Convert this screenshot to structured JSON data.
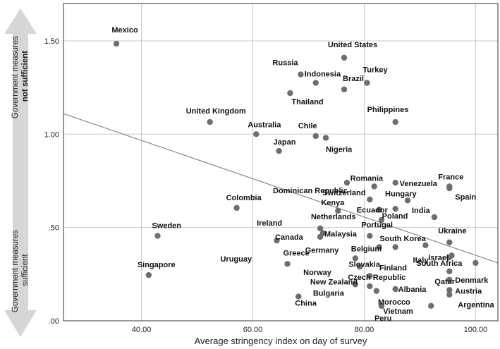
{
  "chart_data": {
    "type": "scatter",
    "xlabel": "Average stringency index on day of survey",
    "ylabel_top": [
      "Government measures",
      "not sufficient"
    ],
    "ylabel_bottom": [
      "Government measures",
      "sufficient"
    ],
    "xlim": [
      26,
      104
    ],
    "ylim": [
      0.0,
      1.7
    ],
    "x_ticks": [
      40,
      60,
      80,
      100
    ],
    "x_tick_labels": [
      "40.00",
      "60.00",
      "80.00",
      "100.00"
    ],
    "y_ticks": [
      0.0,
      0.5,
      1.0,
      1.5
    ],
    "y_tick_labels": [
      ".00",
      ".50",
      "1.00",
      "1.50"
    ],
    "grid": true,
    "fit_line": {
      "x": [
        26,
        104
      ],
      "y": [
        1.11,
        0.31
      ]
    },
    "points": [
      {
        "label": "Mexico",
        "x": 35.5,
        "y": 1.485
      },
      {
        "label": "United States",
        "x": 76.4,
        "y": 1.41
      },
      {
        "label": "Russia",
        "x": 68.6,
        "y": 1.32
      },
      {
        "label": "Indonesia",
        "x": 71.3,
        "y": 1.275
      },
      {
        "label": "Turkey",
        "x": 80.5,
        "y": 1.275
      },
      {
        "label": "Brazil",
        "x": 76.4,
        "y": 1.24
      },
      {
        "label": "Thailand",
        "x": 66.7,
        "y": 1.22
      },
      {
        "label": "Philippines",
        "x": 85.6,
        "y": 1.065
      },
      {
        "label": "United Kingdom",
        "x": 52.3,
        "y": 1.065
      },
      {
        "label": "Australia",
        "x": 60.6,
        "y": 1.0
      },
      {
        "label": "Chile",
        "x": 71.3,
        "y": 0.99
      },
      {
        "label": "Nigeria",
        "x": 73.1,
        "y": 0.98
      },
      {
        "label": "Japan",
        "x": 64.7,
        "y": 0.91
      },
      {
        "label": "Dominican Republic",
        "x": 76.9,
        "y": 0.74
      },
      {
        "label": "Romania",
        "x": 81.8,
        "y": 0.72
      },
      {
        "label": "Venezuela",
        "x": 85.6,
        "y": 0.74
      },
      {
        "label": "France",
        "x": 95.3,
        "y": 0.72
      },
      {
        "label": "Spain",
        "x": 95.3,
        "y": 0.71
      },
      {
        "label": "Switzerland",
        "x": 81.0,
        "y": 0.65
      },
      {
        "label": "Hungary",
        "x": 87.8,
        "y": 0.645
      },
      {
        "label": "Colombia",
        "x": 57.1,
        "y": 0.605
      },
      {
        "label": "Kenya",
        "x": 75.3,
        "y": 0.59
      },
      {
        "label": "Ecuador",
        "x": 82.7,
        "y": 0.595
      },
      {
        "label": "India",
        "x": 92.6,
        "y": 0.555
      },
      {
        "label": "Poland",
        "x": 85.6,
        "y": 0.6
      },
      {
        "label": "Netherlands",
        "x": 83.1,
        "y": 0.54
      },
      {
        "label": "Ireland",
        "x": 72.1,
        "y": 0.495
      },
      {
        "label": "Malaysia",
        "x": 72.6,
        "y": 0.47
      },
      {
        "label": "Sweden",
        "x": 42.9,
        "y": 0.455
      },
      {
        "label": "Canada",
        "x": 72.1,
        "y": 0.45
      },
      {
        "label": "Portugal",
        "x": 81.0,
        "y": 0.455
      },
      {
        "label": "South Korea",
        "x": 91.0,
        "y": 0.405
      },
      {
        "label": "Uruguay",
        "x": 64.3,
        "y": 0.43
      },
      {
        "label": "Ukraine",
        "x": 95.3,
        "y": 0.42
      },
      {
        "label": "Germany",
        "x": 85.6,
        "y": 0.395
      },
      {
        "label": "Belgium",
        "x": 82.7,
        "y": 0.395
      },
      {
        "label": "Italy",
        "x": 95.7,
        "y": 0.35
      },
      {
        "label": "Finland",
        "x": 78.4,
        "y": 0.335
      },
      {
        "label": "Israel",
        "x": 95.3,
        "y": 0.34
      },
      {
        "label": "South Africa",
        "x": 100.0,
        "y": 0.31
      },
      {
        "label": "Greece",
        "x": 66.2,
        "y": 0.305
      },
      {
        "label": "Norway",
        "x": 79.2,
        "y": 0.29
      },
      {
        "label": "Qatar",
        "x": 95.3,
        "y": 0.265
      },
      {
        "label": "Singapore",
        "x": 41.3,
        "y": 0.245
      },
      {
        "label": "Slovakia",
        "x": 81.0,
        "y": 0.24
      },
      {
        "label": "Denmark",
        "x": 95.3,
        "y": 0.22
      },
      {
        "label": "New Zealand",
        "x": 78.4,
        "y": 0.195
      },
      {
        "label": "Czech Republic",
        "x": 81.0,
        "y": 0.185
      },
      {
        "label": "Albania",
        "x": 85.6,
        "y": 0.17
      },
      {
        "label": "Austria",
        "x": 95.3,
        "y": 0.165
      },
      {
        "label": "Bulgaria",
        "x": 82.2,
        "y": 0.16
      },
      {
        "label": "China",
        "x": 68.2,
        "y": 0.13
      },
      {
        "label": "Morocco",
        "x": 83.1,
        "y": 0.08
      },
      {
        "label": "Argentina",
        "x": 95.3,
        "y": 0.14
      },
      {
        "label": "Peru",
        "x": 83.1,
        "y": 0.08
      },
      {
        "label": "Vietnam",
        "x": 92.0,
        "y": 0.08
      }
    ]
  },
  "colors": {
    "point": "#6e6e6e",
    "grid": "#c8c8c8",
    "fit_line": "#888888",
    "arrow": "#d6d6d6",
    "frame": "#333333"
  }
}
